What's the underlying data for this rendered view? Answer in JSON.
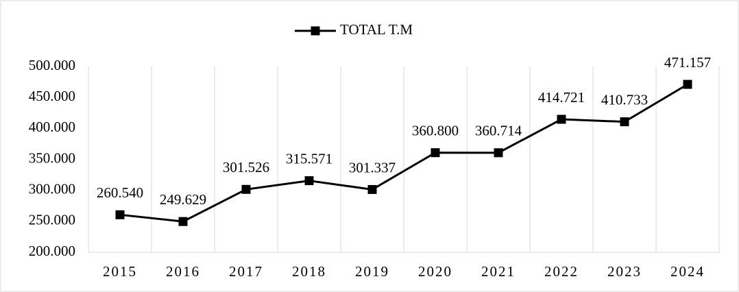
{
  "chart_data": {
    "type": "line",
    "categories": [
      "2015",
      "2016",
      "2017",
      "2018",
      "2019",
      "2020",
      "2021",
      "2022",
      "2023",
      "2024"
    ],
    "series": [
      {
        "name": "TOTAL T.M",
        "color": "#000000",
        "values": [
          260540,
          249629,
          301526,
          315571,
          301337,
          360800,
          360714,
          414721,
          410733,
          471157
        ],
        "value_labels": [
          "260.540",
          "249.629",
          "301.526",
          "315.571",
          "301.337",
          "360.800",
          "360.714",
          "414.721",
          "410.733",
          "471.157"
        ]
      }
    ],
    "ylim": [
      200000,
      500000
    ],
    "yticks": [
      {
        "value": 200000,
        "label": "200.000"
      },
      {
        "value": 250000,
        "label": "250.000"
      },
      {
        "value": 300000,
        "label": "300.000"
      },
      {
        "value": 350000,
        "label": "350.000"
      },
      {
        "value": 400000,
        "label": "400.000"
      },
      {
        "value": 450000,
        "label": "450.000"
      },
      {
        "value": 500000,
        "label": "500.000"
      }
    ],
    "grid": "vertical",
    "legend": "top"
  }
}
